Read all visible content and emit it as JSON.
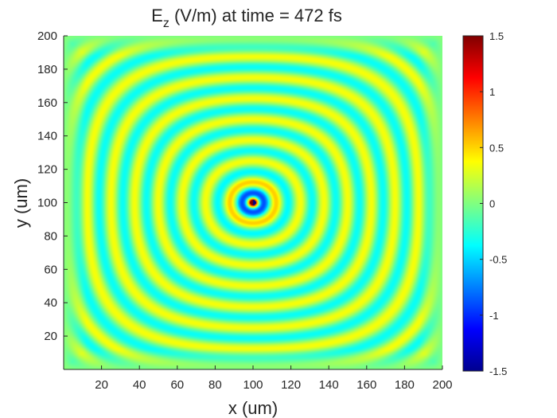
{
  "chart_data": {
    "type": "heatmap",
    "title": {
      "main": "E",
      "subscript": "z",
      "rest": " (V/m) at time = 472 fs"
    },
    "xlabel": "x (um)",
    "ylabel": "y (um)",
    "xlim": [
      0,
      200
    ],
    "ylim": [
      0,
      200
    ],
    "xticks": [
      20,
      40,
      60,
      80,
      100,
      120,
      140,
      160,
      180,
      200
    ],
    "yticks": [
      20,
      40,
      60,
      80,
      100,
      120,
      140,
      160,
      180,
      200
    ],
    "colorbar": {
      "colormap": "jet",
      "clim": [
        -1.5,
        1.5
      ],
      "ticks": [
        {
          "value": 1.5,
          "label": "1.5"
        },
        {
          "value": 1,
          "label": "1"
        },
        {
          "value": 0.5,
          "label": "0.5"
        },
        {
          "value": 0,
          "label": "0"
        },
        {
          "value": -0.5,
          "label": "-0.5"
        },
        {
          "value": -1,
          "label": "-1"
        },
        {
          "value": -1.5,
          "label": "-1.5"
        }
      ]
    },
    "field": {
      "description_free": true,
      "source_center": [
        100,
        100
      ],
      "ring_wavelength_um": 12.5,
      "near_field_peak": 1.5,
      "far_field_amplitude": 0.35
    },
    "grid": false
  }
}
